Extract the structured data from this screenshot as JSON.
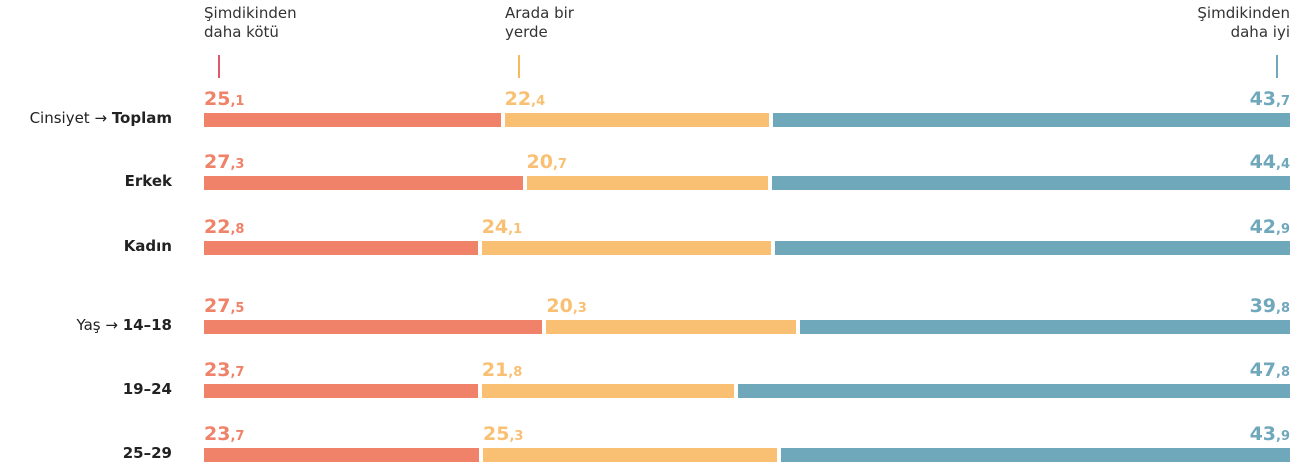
{
  "chart_data": {
    "type": "stacked_bar_horizontal_normalized",
    "categories": [
      "Toplam",
      "Erkek",
      "Kadın",
      "14–18",
      "19–24",
      "25–29"
    ],
    "category_prefixes": [
      "Cinsiyet →",
      null,
      null,
      "Yaş →",
      null,
      null
    ],
    "series": [
      {
        "name": "Şimdikinden daha kötü",
        "color": "#ef8269",
        "tick_color": "#e0566a",
        "values": [
          25.1,
          27.3,
          22.8,
          27.5,
          23.7,
          23.7
        ],
        "value_labels": [
          "25,1",
          "27,3",
          "22,8",
          "27,5",
          "23,7",
          "23,7"
        ]
      },
      {
        "name": "Arada bir yerde",
        "color": "#f9c073",
        "tick_color": "#f7b95f",
        "values": [
          22.4,
          20.7,
          24.1,
          20.3,
          21.8,
          25.3
        ],
        "value_labels": [
          "22,4",
          "20,7",
          "24,1",
          "20,3",
          "21,8",
          "25,3"
        ]
      },
      {
        "name": "Şimdikinden daha iyi",
        "color": "#6fa7bb",
        "tick_color": "#6fa7bb",
        "values": [
          43.7,
          44.4,
          42.9,
          39.8,
          47.8,
          43.9
        ],
        "value_labels": [
          "43,7",
          "44,4",
          "42,9",
          "39,8",
          "47,8",
          "43,9"
        ]
      }
    ]
  }
}
